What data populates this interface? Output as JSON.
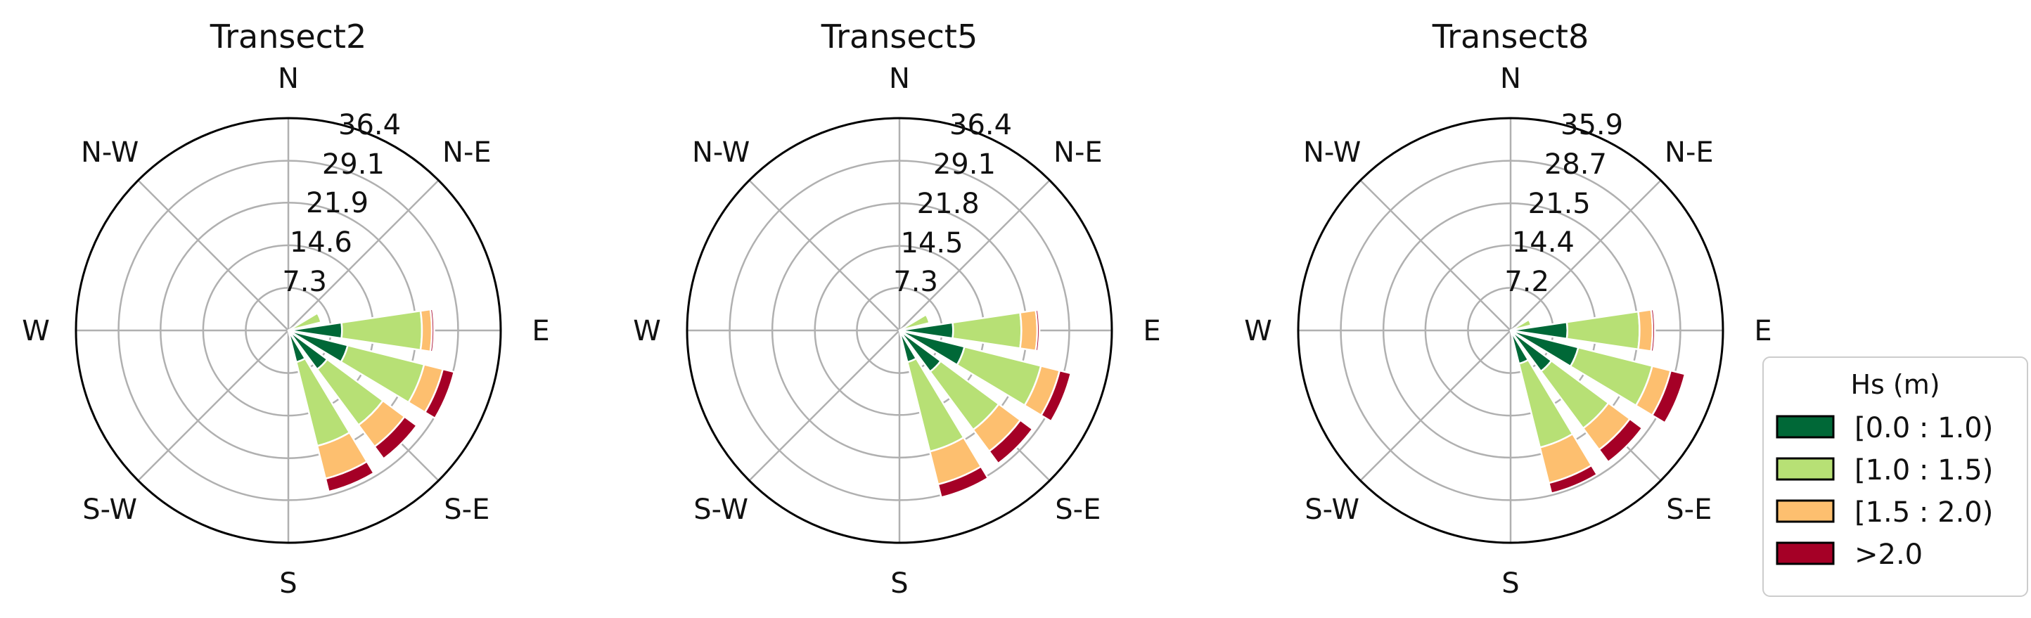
{
  "legend": {
    "title": "Hs (m)",
    "bins": [
      {
        "label": "[0.0 : 1.0)",
        "color": "#006837"
      },
      {
        "label": "[1.0 : 1.5)",
        "color": "#b7e075"
      },
      {
        "label": "[1.5 : 2.0)",
        "color": "#fdbf6f"
      },
      {
        "label": ">2.0",
        "color": "#a50026"
      }
    ]
  },
  "chart_data": [
    {
      "type": "windrose",
      "title": "Transect2",
      "direction_labels": [
        "N",
        "N-E",
        "E",
        "S-E",
        "S",
        "S-W",
        "W",
        "N-W"
      ],
      "radial_ticks": [
        7.3,
        14.6,
        21.9,
        29.1,
        36.4
      ],
      "rmax": 36.4,
      "sectors": [
        {
          "direction_deg": 67.5,
          "cumulative": [
            0.4,
            5.8,
            5.9,
            6.0
          ]
        },
        {
          "direction_deg": 90,
          "cumulative": [
            9.2,
            22.9,
            24.6,
            25.0
          ]
        },
        {
          "direction_deg": 112.5,
          "cumulative": [
            10.5,
            24.0,
            27.3,
            29.3
          ]
        },
        {
          "direction_deg": 135,
          "cumulative": [
            8.3,
            20.2,
            24.8,
            27.4
          ]
        },
        {
          "direction_deg": 157.5,
          "cumulative": [
            5.6,
            20.4,
            26.2,
            28.5
          ]
        }
      ]
    },
    {
      "type": "windrose",
      "title": "Transect5",
      "direction_labels": [
        "N",
        "N-E",
        "E",
        "S-E",
        "S",
        "S-W",
        "W",
        "N-W"
      ],
      "radial_ticks": [
        7.3,
        14.5,
        21.8,
        29.1,
        36.4
      ],
      "rmax": 36.4,
      "sectors": [
        {
          "direction_deg": 67.5,
          "cumulative": [
            0.3,
            5.3,
            5.4,
            5.5
          ]
        },
        {
          "direction_deg": 90,
          "cumulative": [
            9.2,
            20.9,
            23.6,
            24.0
          ]
        },
        {
          "direction_deg": 112.5,
          "cumulative": [
            11.5,
            25.0,
            28.3,
            30.3
          ]
        },
        {
          "direction_deg": 135,
          "cumulative": [
            8.8,
            21.2,
            25.8,
            28.4
          ]
        },
        {
          "direction_deg": 157.5,
          "cumulative": [
            5.6,
            21.4,
            27.2,
            29.5
          ]
        }
      ]
    },
    {
      "type": "windrose",
      "title": "Transect8",
      "direction_labels": [
        "N",
        "N-E",
        "E",
        "S-E",
        "S",
        "S-W",
        "W",
        "N-W"
      ],
      "radial_ticks": [
        7.2,
        14.4,
        21.5,
        28.7,
        35.9
      ],
      "rmax": 35.9,
      "sectors": [
        {
          "direction_deg": 67.5,
          "cumulative": [
            0.3,
            3.6,
            3.7,
            3.8
          ]
        },
        {
          "direction_deg": 90,
          "cumulative": [
            9.6,
            21.8,
            24.0,
            24.4
          ]
        },
        {
          "direction_deg": 112.5,
          "cumulative": [
            11.8,
            24.7,
            27.9,
            30.4
          ]
        },
        {
          "direction_deg": 135,
          "cumulative": [
            8.6,
            20.6,
            25.1,
            27.7
          ]
        },
        {
          "direction_deg": 157.5,
          "cumulative": [
            5.8,
            20.4,
            26.6,
            28.4
          ]
        }
      ]
    }
  ]
}
